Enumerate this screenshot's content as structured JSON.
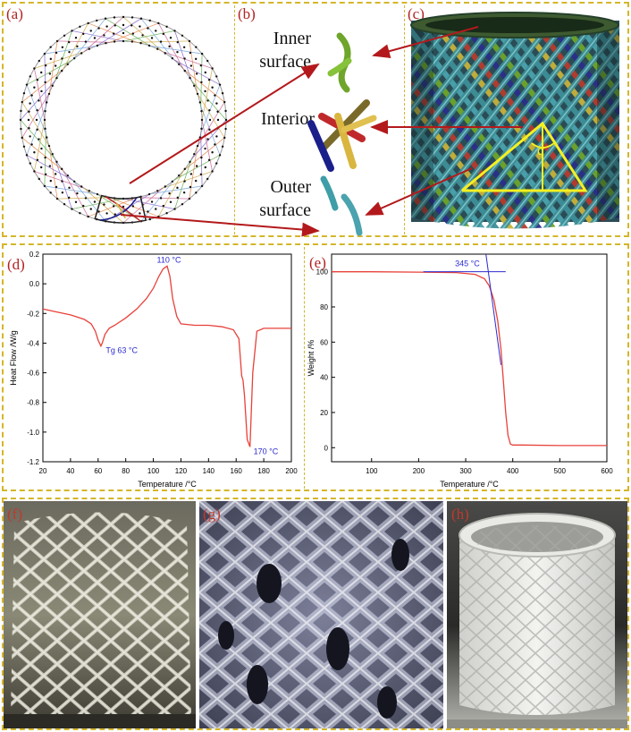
{
  "top": {
    "panel_a": {
      "label": "(a)"
    },
    "panel_b": {
      "label": "(b)",
      "inner": "Inner surface",
      "interior": "Interior",
      "outer": "Outer surface"
    },
    "panel_c": {
      "label": "(c)",
      "angle_label": "α"
    }
  },
  "chart_data": [
    {
      "panel": "(d)",
      "type": "line",
      "xlabel": "Temperature /°C",
      "ylabel": "Heat Flow /W/g",
      "xlim": [
        20,
        200
      ],
      "ylim": [
        -1.2,
        0.2
      ],
      "xticks": [
        "20",
        "40",
        "60",
        "80",
        "100",
        "120",
        "140",
        "160",
        "180",
        "200"
      ],
      "yticks": [
        "0.2",
        "0.0",
        "-0.2",
        "-0.4",
        "-0.6",
        "-0.8",
        "-1.0",
        "-1.2"
      ],
      "line_color": "#e8413a",
      "annotation_color": "#2b2bd0",
      "x": [
        20,
        30,
        40,
        50,
        55,
        58,
        60,
        62,
        63,
        65,
        68,
        72,
        80,
        88,
        95,
        100,
        104,
        107,
        110,
        112,
        114,
        117,
        120,
        130,
        140,
        150,
        158,
        162,
        164,
        165,
        166,
        168,
        170,
        172,
        175,
        180,
        190,
        200
      ],
      "y": [
        -0.17,
        -0.19,
        -0.21,
        -0.24,
        -0.27,
        -0.32,
        -0.38,
        -0.42,
        -0.4,
        -0.34,
        -0.3,
        -0.28,
        -0.23,
        -0.17,
        -0.1,
        -0.03,
        0.05,
        0.1,
        0.12,
        0.05,
        -0.1,
        -0.22,
        -0.27,
        -0.28,
        -0.28,
        -0.29,
        -0.31,
        -0.37,
        -0.62,
        -0.65,
        -0.75,
        -1.05,
        -1.1,
        -0.6,
        -0.32,
        -0.3,
        -0.3,
        -0.3
      ],
      "annotations": [
        {
          "text": "Tg 63 °C",
          "x": 63,
          "y": -0.42
        },
        {
          "text": "110 °C",
          "x": 110,
          "y": 0.12
        },
        {
          "text": "170 °C",
          "x": 170,
          "y": -1.1
        }
      ]
    },
    {
      "panel": "(e)",
      "type": "line",
      "xlabel": "Temperature /°C",
      "ylabel": "Weight /%",
      "xlim": [
        15,
        600
      ],
      "ylim": [
        -8,
        110
      ],
      "xticks": [
        "100",
        "200",
        "300",
        "400",
        "500",
        "600"
      ],
      "yticks": [
        "0",
        "20",
        "40",
        "60",
        "80",
        "100"
      ],
      "line_color": "#e8413a",
      "annotation_color": "#2b2bd0",
      "x": [
        15,
        100,
        200,
        280,
        320,
        340,
        350,
        360,
        368,
        375,
        380,
        385,
        390,
        395,
        400,
        420,
        500,
        600
      ],
      "y": [
        100,
        100,
        99.8,
        99.5,
        98.5,
        96,
        92,
        84,
        72,
        56,
        38,
        20,
        7,
        2,
        1.5,
        1.5,
        1.2,
        1.2
      ],
      "annotations": [
        {
          "text": "345 °C",
          "x": 345,
          "y": 100
        }
      ],
      "tangent_h": {
        "x1": 210,
        "x2": 385,
        "y": 100
      },
      "tangent_v": {
        "x1": 343,
        "y1": 110,
        "x2": 375,
        "y2": 47
      }
    }
  ],
  "bottom": {
    "panel_f": {
      "label": "(f)"
    },
    "panel_g": {
      "label": "(g)"
    },
    "panel_h": {
      "label": "(h)"
    }
  }
}
